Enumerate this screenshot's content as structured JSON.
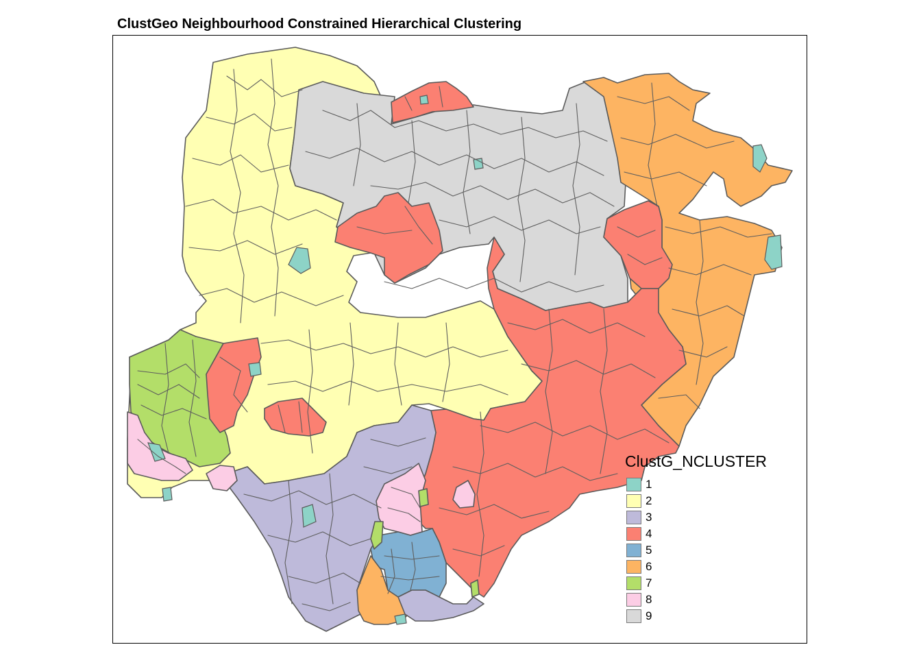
{
  "title": "ClustGeo Neighbourhood Constrained Hierarchical Clustering",
  "legend": {
    "title": "ClustG_NCLUSTER",
    "items": [
      {
        "label": "1",
        "color": "#8DD3C7"
      },
      {
        "label": "2",
        "color": "#FFFFB3"
      },
      {
        "label": "3",
        "color": "#BEBADA"
      },
      {
        "label": "4",
        "color": "#FB8072"
      },
      {
        "label": "5",
        "color": "#80B1D3"
      },
      {
        "label": "6",
        "color": "#FDB462"
      },
      {
        "label": "7",
        "color": "#B3DE69"
      },
      {
        "label": "8",
        "color": "#FCCDE5"
      },
      {
        "label": "9",
        "color": "#D9D9D9"
      }
    ]
  },
  "map": {
    "border_color": "#5A5A5A",
    "frame_color": "#000000"
  }
}
